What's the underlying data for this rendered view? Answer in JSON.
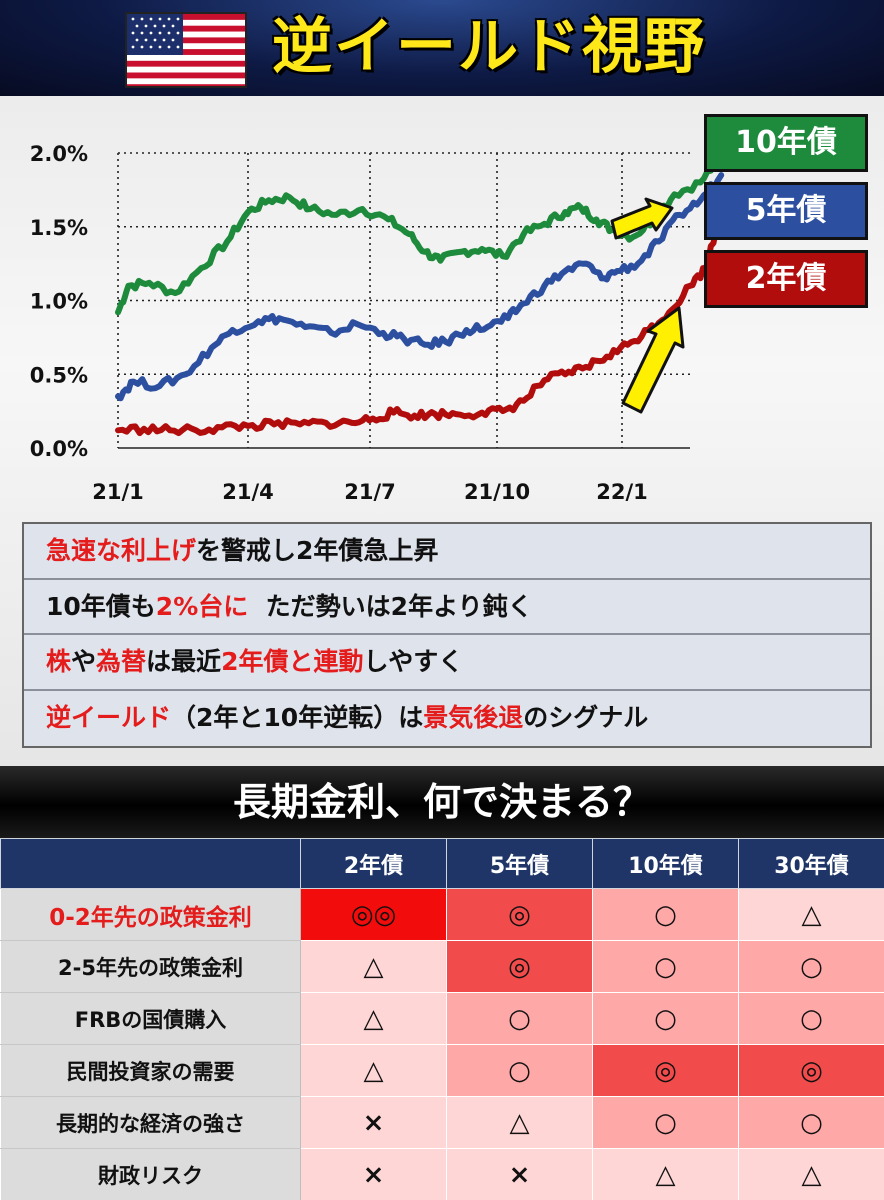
{
  "header": {
    "title": "逆イールド視野",
    "flag": "us-flag"
  },
  "chart_data": {
    "type": "line",
    "x_ticks": [
      "21/1",
      "21/4",
      "21/7",
      "21/10",
      "22/1"
    ],
    "y_ticks": [
      "2.0%",
      "1.5%",
      "1.0%",
      "0.5%",
      "0.0%"
    ],
    "ylim": [
      0,
      2.0
    ],
    "grid": true,
    "legend_placement": "right",
    "series": [
      {
        "name": "10年債",
        "color": "#1e8a3c",
        "points": [
          [
            0.0,
            0.92
          ],
          [
            0.02,
            1.1
          ],
          [
            0.06,
            1.12
          ],
          [
            0.11,
            1.05
          ],
          [
            0.16,
            1.22
          ],
          [
            0.21,
            1.4
          ],
          [
            0.25,
            1.6
          ],
          [
            0.29,
            1.68
          ],
          [
            0.33,
            1.7
          ],
          [
            0.37,
            1.62
          ],
          [
            0.42,
            1.58
          ],
          [
            0.47,
            1.62
          ],
          [
            0.52,
            1.55
          ],
          [
            0.56,
            1.45
          ],
          [
            0.59,
            1.33
          ],
          [
            0.62,
            1.27
          ],
          [
            0.66,
            1.33
          ],
          [
            0.7,
            1.35
          ],
          [
            0.74,
            1.3
          ],
          [
            0.78,
            1.45
          ],
          [
            0.82,
            1.52
          ],
          [
            0.86,
            1.6
          ],
          [
            0.89,
            1.63
          ],
          [
            0.92,
            1.55
          ],
          [
            0.95,
            1.48
          ],
          [
            0.99,
            1.43
          ],
          [
            1.03,
            1.55
          ],
          [
            1.07,
            1.72
          ],
          [
            1.12,
            1.8
          ],
          [
            1.16,
            1.98
          ]
        ]
      },
      {
        "name": "5年債",
        "color": "#2c4fa0",
        "points": [
          [
            0.0,
            0.35
          ],
          [
            0.03,
            0.45
          ],
          [
            0.08,
            0.42
          ],
          [
            0.13,
            0.5
          ],
          [
            0.18,
            0.68
          ],
          [
            0.22,
            0.8
          ],
          [
            0.27,
            0.86
          ],
          [
            0.31,
            0.88
          ],
          [
            0.36,
            0.82
          ],
          [
            0.41,
            0.78
          ],
          [
            0.46,
            0.84
          ],
          [
            0.51,
            0.78
          ],
          [
            0.55,
            0.74
          ],
          [
            0.59,
            0.7
          ],
          [
            0.63,
            0.72
          ],
          [
            0.67,
            0.8
          ],
          [
            0.71,
            0.82
          ],
          [
            0.75,
            0.88
          ],
          [
            0.78,
            0.98
          ],
          [
            0.82,
            1.1
          ],
          [
            0.86,
            1.2
          ],
          [
            0.9,
            1.25
          ],
          [
            0.93,
            1.15
          ],
          [
            0.96,
            1.2
          ],
          [
            1.0,
            1.25
          ],
          [
            1.04,
            1.4
          ],
          [
            1.08,
            1.58
          ],
          [
            1.12,
            1.68
          ],
          [
            1.16,
            1.85
          ]
        ]
      },
      {
        "name": "2年債",
        "color": "#b20d0d",
        "points": [
          [
            0.0,
            0.12
          ],
          [
            0.05,
            0.13
          ],
          [
            0.1,
            0.12
          ],
          [
            0.15,
            0.12
          ],
          [
            0.2,
            0.14
          ],
          [
            0.25,
            0.15
          ],
          [
            0.3,
            0.16
          ],
          [
            0.35,
            0.16
          ],
          [
            0.4,
            0.17
          ],
          [
            0.45,
            0.17
          ],
          [
            0.49,
            0.2
          ],
          [
            0.53,
            0.24
          ],
          [
            0.57,
            0.22
          ],
          [
            0.61,
            0.23
          ],
          [
            0.65,
            0.23
          ],
          [
            0.7,
            0.24
          ],
          [
            0.74,
            0.25
          ],
          [
            0.78,
            0.32
          ],
          [
            0.82,
            0.46
          ],
          [
            0.86,
            0.5
          ],
          [
            0.9,
            0.55
          ],
          [
            0.94,
            0.62
          ],
          [
            0.98,
            0.7
          ],
          [
            1.02,
            0.8
          ],
          [
            1.06,
            0.92
          ],
          [
            1.1,
            1.1
          ],
          [
            1.13,
            1.22
          ],
          [
            1.16,
            1.6
          ]
        ]
      }
    ]
  },
  "legend": {
    "label_10": "10年債",
    "label_5": "5年債",
    "label_2": "2年債"
  },
  "points": {
    "p1a": "急速な利上げ",
    "p1b": "を警戒し2年債急上昇",
    "p2a": "10年債も",
    "p2b": "2%台に",
    "p2c": "ただ勢いは2年より鈍く",
    "p3a": "株",
    "p3b": "や",
    "p3c": "為替",
    "p3d": "は最近",
    "p3e": "2年債と連動",
    "p3f": "しやすく",
    "p4a": "逆イールド",
    "p4b": "（2年と10年逆転）は",
    "p4c": "景気後退",
    "p4d": "のシグナル"
  },
  "section": {
    "title": "長期金利、何で決まる？"
  },
  "table": {
    "headers": [
      "",
      "2年債",
      "5年債",
      "10年債",
      "30年債"
    ],
    "rows": [
      {
        "label": "0-2年先の政策金利",
        "cells": [
          "◎◎",
          "◎",
          "○",
          "△"
        ]
      },
      {
        "label": "2-5年先の政策金利",
        "cells": [
          "△",
          "◎",
          "○",
          "○"
        ]
      },
      {
        "label": "FRBの国債購入",
        "cells": [
          "△",
          "○",
          "○",
          "○"
        ]
      },
      {
        "label": "民間投資家の需要",
        "cells": [
          "△",
          "○",
          "◎",
          "◎"
        ]
      },
      {
        "label": "長期的な経済の強さ",
        "cells": [
          "×",
          "△",
          "○",
          "○"
        ]
      },
      {
        "label": "財政リスク",
        "cells": [
          "×",
          "×",
          "△",
          "△"
        ]
      }
    ]
  }
}
